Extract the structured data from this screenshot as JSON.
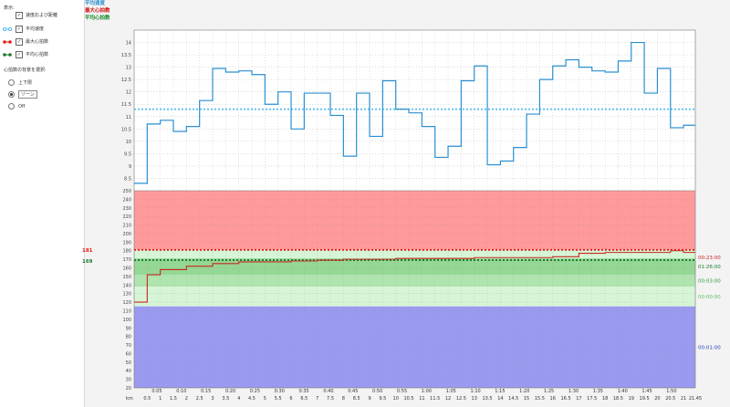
{
  "sidebar": {
    "title": "表示:",
    "checkboxes": [
      {
        "label": "速度および距離",
        "checked": true
      },
      {
        "label": "平均速度",
        "checked": true
      },
      {
        "label": "最大心拍数",
        "checked": true
      },
      {
        "label": "平均心拍数",
        "checked": true
      }
    ],
    "zone_title": "心拍数の背景を選択:",
    "radios": [
      {
        "label": "上下限",
        "selected": false
      },
      {
        "label": "ゾーン",
        "selected": true
      },
      {
        "label": "Off",
        "selected": false
      }
    ]
  },
  "header": {
    "avg_speed": "平均速度",
    "max_hr": "最大心拍数",
    "avg_hr": "平均心拍数"
  },
  "colors": {
    "speed": "#2a8fd0",
    "avg_speed": "#4ab8ee",
    "hr": "#c8281e",
    "max_hr": "#e0201a",
    "avg_hr": "#1a7a2a",
    "zone_red": "#ff9a9a",
    "zone_green_dark": "#95d795",
    "zone_green_mid": "#b0e5b0",
    "zone_green_light": "#d6f5d6",
    "zone_blue": "#9a9af0"
  },
  "chart_data": [
    {
      "type": "line",
      "name": "speed",
      "ylim": [
        8,
        14.5
      ],
      "yticks": [
        "8.5",
        "9",
        "9.5",
        "10",
        "10.5",
        "11",
        "11.5",
        "12",
        "12.5",
        "13",
        "13.5",
        "14"
      ],
      "xlim": [
        0,
        21.45
      ],
      "avg": 11.3,
      "x": [
        0,
        0.5,
        1,
        1.5,
        2,
        2.5,
        3,
        3.5,
        4,
        4.5,
        5,
        5.5,
        6,
        6.5,
        7,
        7.5,
        8,
        8.5,
        9,
        9.5,
        10,
        10.5,
        11,
        11.5,
        12,
        12.5,
        13,
        13.5,
        14,
        14.5,
        15,
        15.5,
        16,
        16.5,
        17,
        17.5,
        18,
        18.5,
        19,
        19.5,
        20,
        20.5,
        21,
        21.45
      ],
      "values": [
        8.3,
        10.7,
        10.85,
        10.4,
        10.6,
        11.65,
        12.95,
        12.8,
        12.85,
        12.7,
        11.5,
        12.0,
        10.5,
        11.95,
        11.95,
        11.05,
        9.4,
        11.95,
        10.2,
        12.45,
        11.3,
        11.15,
        10.6,
        9.35,
        9.8,
        12.45,
        13.05,
        9.05,
        9.2,
        9.75,
        11.1,
        12.5,
        13.05,
        13.3,
        13.0,
        12.85,
        12.8,
        13.25,
        14.0,
        11.95,
        12.95,
        10.55,
        10.65,
        10.65
      ]
    },
    {
      "type": "line",
      "name": "heart_rate",
      "ylim": [
        20,
        250
      ],
      "yticks": [
        "20",
        "30",
        "40",
        "50",
        "60",
        "70",
        "80",
        "90",
        "100",
        "110",
        "120",
        "130",
        "140",
        "150",
        "160",
        "170",
        "180",
        "190",
        "200",
        "210",
        "220",
        "230",
        "240",
        "250"
      ],
      "max_label": "181",
      "avg_label": "169",
      "max": 181,
      "avg": 169,
      "x": [
        0,
        0.5,
        1,
        2,
        3,
        4,
        5,
        6,
        7,
        8,
        9,
        10,
        11,
        12,
        13,
        14,
        15,
        16,
        17,
        18,
        19,
        20,
        20.5,
        21,
        21.45
      ],
      "values": [
        120,
        152,
        158,
        162,
        165,
        167,
        167,
        168,
        169,
        170,
        170,
        171,
        171,
        171,
        172,
        172,
        172,
        173,
        177,
        178,
        178,
        178,
        180,
        178,
        178
      ],
      "zones": [
        {
          "from": 181,
          "to": 250,
          "label": "00:23:00",
          "color_key": "zone_red"
        },
        {
          "from": 171,
          "to": 181,
          "label": "",
          "color_key": "zone_green_light"
        },
        {
          "from": 152,
          "to": 171,
          "label": "01:26:00",
          "color_key": "zone_green_dark"
        },
        {
          "from": 138,
          "to": 152,
          "label": "00:03:00",
          "color_key": "zone_green_mid"
        },
        {
          "from": 115,
          "to": 138,
          "label": "00:00:00",
          "color_key": "zone_green_light"
        },
        {
          "from": 20,
          "to": 115,
          "label": "00:01:00",
          "color_key": "zone_blue"
        }
      ]
    }
  ],
  "x_axis": {
    "time_ticks": [
      "0:05",
      "0:10",
      "0:15",
      "0:20",
      "0:25",
      "0:30",
      "0:35",
      "0:40",
      "0:45",
      "0:50",
      "0:55",
      "1:00",
      "1:05",
      "1:10",
      "1:15",
      "1:20",
      "1:25",
      "1:30",
      "1:35",
      "1:40",
      "1:45",
      "1:50"
    ],
    "km_label": "km",
    "km_ticks": [
      "0.5",
      "1",
      "1.5",
      "2",
      "2.5",
      "3",
      "3.5",
      "4",
      "4.5",
      "5",
      "5.5",
      "6",
      "6.5",
      "7",
      "7.5",
      "8",
      "8.5",
      "9",
      "9.5",
      "10",
      "10.5",
      "11",
      "11.5",
      "12",
      "12.5",
      "13",
      "13.5",
      "14",
      "14.5",
      "15",
      "15.5",
      "16",
      "16.5",
      "17",
      "17.5",
      "18",
      "18.5",
      "19",
      "19.5",
      "20",
      "20.5",
      "21",
      "21.45"
    ]
  }
}
